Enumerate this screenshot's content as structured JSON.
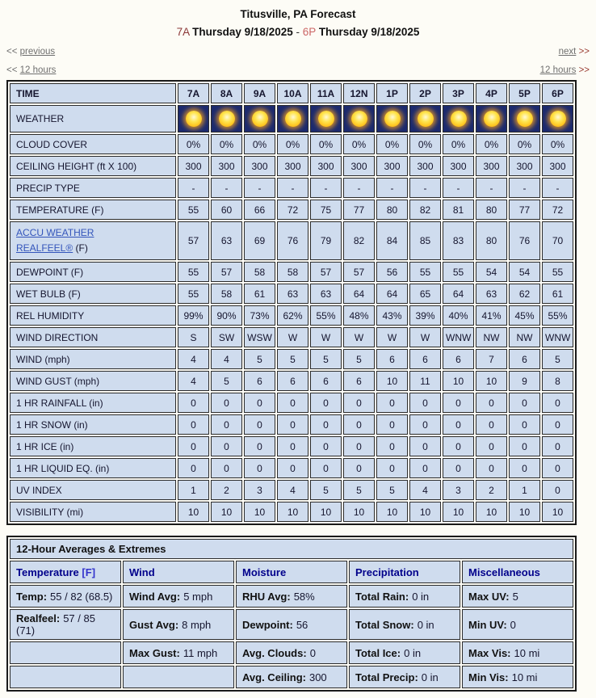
{
  "header": {
    "title": "Titusville, PA Forecast",
    "range": {
      "start_time": "7A",
      "start_date": "Thursday 9/18/2025",
      "separator": "-",
      "end_time": "6P",
      "end_date": "Thursday 9/18/2025"
    },
    "nav": {
      "prev_arrows": "<<",
      "previous_label": "previous",
      "next_label": "next",
      "next_arrows": ">>",
      "back12_arrows": "<<",
      "back12_label": "12 hours",
      "fwd12_label": "12 hours",
      "fwd12_arrows": ">>"
    }
  },
  "forecast_table": {
    "time_label": "TIME",
    "times": [
      "7A",
      "8A",
      "9A",
      "10A",
      "11A",
      "12N",
      "1P",
      "2P",
      "3P",
      "4P",
      "5P",
      "6P"
    ],
    "weather_label": "WEATHER",
    "weather": [
      "sunny",
      "sunny",
      "sunny",
      "sunny",
      "sunny",
      "sunny",
      "sunny",
      "sunny",
      "sunny",
      "sunny",
      "sunny",
      "sunny"
    ],
    "rows": [
      {
        "label": "CLOUD COVER",
        "values": [
          "0%",
          "0%",
          "0%",
          "0%",
          "0%",
          "0%",
          "0%",
          "0%",
          "0%",
          "0%",
          "0%",
          "0%"
        ]
      },
      {
        "label": "CEILING HEIGHT (ft X 100)",
        "values": [
          "300",
          "300",
          "300",
          "300",
          "300",
          "300",
          "300",
          "300",
          "300",
          "300",
          "300",
          "300"
        ]
      },
      {
        "label": "PRECIP TYPE",
        "values": [
          "-",
          "-",
          "-",
          "-",
          "-",
          "-",
          "-",
          "-",
          "-",
          "-",
          "-",
          "-"
        ]
      },
      {
        "label": "TEMPERATURE (F)",
        "values": [
          "55",
          "60",
          "66",
          "72",
          "75",
          "77",
          "80",
          "82",
          "81",
          "80",
          "77",
          "72"
        ]
      },
      {
        "link_lines": [
          "ACCU WEATHER",
          "REALFEEL®"
        ],
        "suffix": "(F)",
        "values": [
          "57",
          "63",
          "69",
          "76",
          "79",
          "82",
          "84",
          "85",
          "83",
          "80",
          "76",
          "70"
        ]
      },
      {
        "label": "DEWPOINT (F)",
        "values": [
          "55",
          "57",
          "58",
          "58",
          "57",
          "57",
          "56",
          "55",
          "55",
          "54",
          "54",
          "55"
        ]
      },
      {
        "label": "WET BULB (F)",
        "values": [
          "55",
          "58",
          "61",
          "63",
          "63",
          "64",
          "64",
          "65",
          "64",
          "63",
          "62",
          "61"
        ]
      },
      {
        "label": "REL HUMIDITY",
        "values": [
          "99%",
          "90%",
          "73%",
          "62%",
          "55%",
          "48%",
          "43%",
          "39%",
          "40%",
          "41%",
          "45%",
          "55%"
        ]
      },
      {
        "label": "WIND DIRECTION",
        "values": [
          "S",
          "SW",
          "WSW",
          "W",
          "W",
          "W",
          "W",
          "W",
          "WNW",
          "NW",
          "NW",
          "WNW"
        ]
      },
      {
        "label": "WIND (mph)",
        "values": [
          "4",
          "4",
          "5",
          "5",
          "5",
          "5",
          "6",
          "6",
          "6",
          "7",
          "6",
          "5"
        ]
      },
      {
        "label": "WIND GUST (mph)",
        "values": [
          "4",
          "5",
          "6",
          "6",
          "6",
          "6",
          "10",
          "11",
          "10",
          "10",
          "9",
          "8"
        ]
      },
      {
        "label": "1 HR RAINFALL (in)",
        "values": [
          "0",
          "0",
          "0",
          "0",
          "0",
          "0",
          "0",
          "0",
          "0",
          "0",
          "0",
          "0"
        ]
      },
      {
        "label": "1 HR SNOW (in)",
        "values": [
          "0",
          "0",
          "0",
          "0",
          "0",
          "0",
          "0",
          "0",
          "0",
          "0",
          "0",
          "0"
        ]
      },
      {
        "label": "1 HR ICE (in)",
        "values": [
          "0",
          "0",
          "0",
          "0",
          "0",
          "0",
          "0",
          "0",
          "0",
          "0",
          "0",
          "0"
        ]
      },
      {
        "label": "1 HR LIQUID EQ. (in)",
        "values": [
          "0",
          "0",
          "0",
          "0",
          "0",
          "0",
          "0",
          "0",
          "0",
          "0",
          "0",
          "0"
        ]
      },
      {
        "label": "UV INDEX",
        "values": [
          "1",
          "2",
          "3",
          "4",
          "5",
          "5",
          "5",
          "4",
          "3",
          "2",
          "1",
          "0"
        ]
      },
      {
        "label": "VISIBILITY (mi)",
        "values": [
          "10",
          "10",
          "10",
          "10",
          "10",
          "10",
          "10",
          "10",
          "10",
          "10",
          "10",
          "10"
        ]
      }
    ]
  },
  "summary_table": {
    "title": "12-Hour Averages & Extremes",
    "columns": [
      {
        "text": "Temperature",
        "bracket": "[F]"
      },
      {
        "text": "Wind"
      },
      {
        "text": "Moisture"
      },
      {
        "text": "Precipitation"
      },
      {
        "text": "Miscellaneous"
      }
    ],
    "rows": [
      [
        {
          "label": "Temp:",
          "value": "55 / 82 (68.5)"
        },
        {
          "label": "Wind Avg:",
          "value": "5 mph"
        },
        {
          "label": "RHU Avg:",
          "value": "58%"
        },
        {
          "label": "Total Rain:",
          "value": "0 in"
        },
        {
          "label": "Max UV:",
          "value": "5"
        }
      ],
      [
        {
          "label": "Realfeel:",
          "value": "57 / 85 (71)"
        },
        {
          "label": "Gust Avg:",
          "value": "8 mph"
        },
        {
          "label": "Dewpoint:",
          "value": "56"
        },
        {
          "label": "Total Snow:",
          "value": "0 in"
        },
        {
          "label": "Min UV:",
          "value": "0"
        }
      ],
      [
        {
          "label": "",
          "value": ""
        },
        {
          "label": "Max Gust:",
          "value": "11 mph"
        },
        {
          "label": "Avg. Clouds:",
          "value": "0"
        },
        {
          "label": "Total Ice:",
          "value": "0 in"
        },
        {
          "label": "Max Vis:",
          "value": "10 mi"
        }
      ],
      [
        {
          "label": "",
          "value": ""
        },
        {
          "label": "",
          "value": ""
        },
        {
          "label": "Avg. Ceiling:",
          "value": "300"
        },
        {
          "label": "Total Precip:",
          "value": "0 in"
        },
        {
          "label": "Min Vis:",
          "value": "10 mi"
        }
      ]
    ]
  },
  "colors": {
    "cell_bg": "#cfdcee",
    "weather_bg": "#1c2a6e",
    "border_dark": "#1a1a1a",
    "header_navy": "#00008b",
    "link_blue": "#3355bb",
    "bracket_blue": "#3333cc",
    "date_red_dark": "#8c3838",
    "date_red_light": "#cc6666",
    "nav_gray": "#6f6f6f",
    "arrow_red": "#9a3c32",
    "sun_core": "#ffe44d",
    "sun_glow": "#f49a00"
  }
}
